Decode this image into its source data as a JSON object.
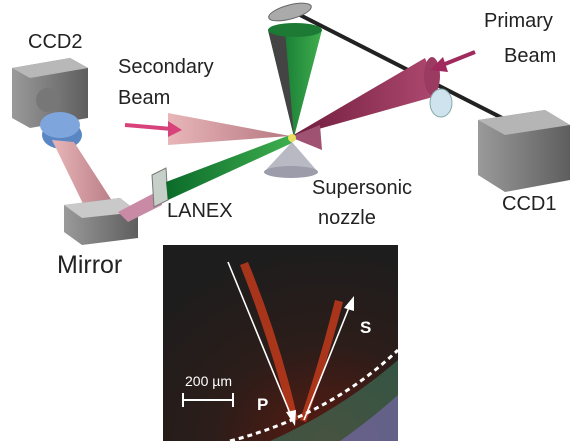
{
  "labels": {
    "ccd2": "CCD2",
    "secondary_beam": [
      "Secondary",
      "Beam"
    ],
    "primary_beam": [
      "Primary",
      "Beam"
    ],
    "nozzle": [
      "Supersonic",
      "nozzle"
    ],
    "ccd1": "CCD1",
    "lanex": "LANEX",
    "mirror": "Mirror"
  },
  "inset": {
    "scale_bar": "200 µm",
    "p": "P",
    "s": "S"
  }
}
